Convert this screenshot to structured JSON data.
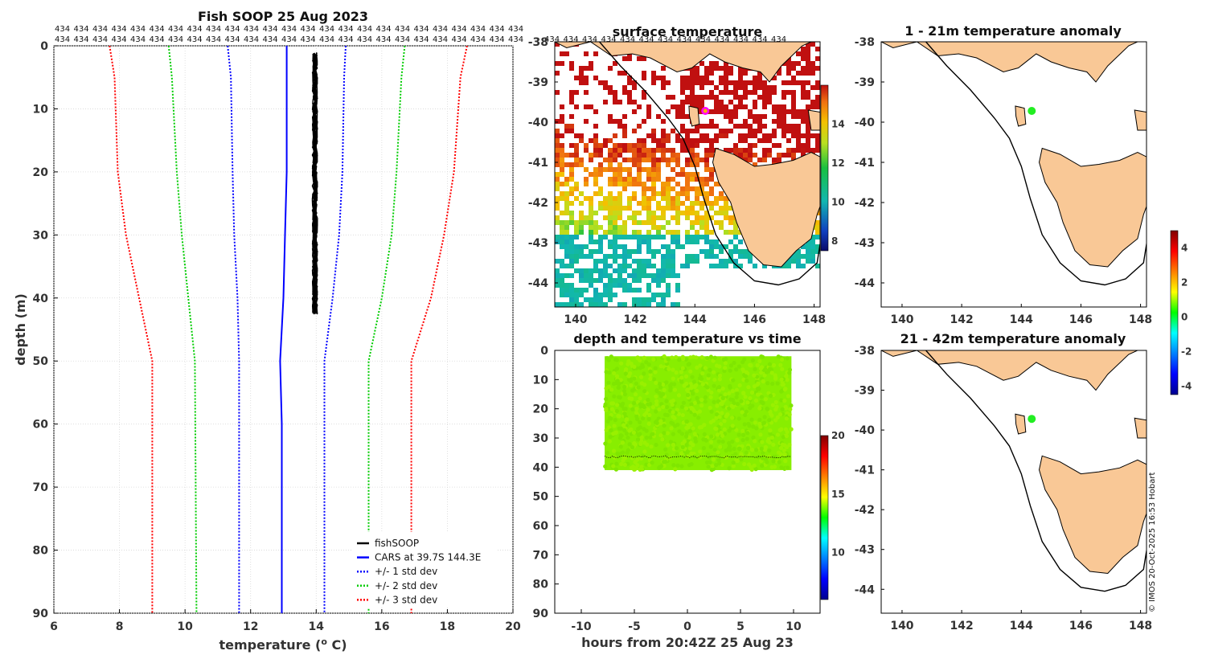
{
  "chart_data": [
    {
      "id": "profile",
      "type": "line",
      "title": "Fish SOOP 25 Aug 2023",
      "xlabel": "temperature (o C)",
      "ylabel": "depth (m)",
      "xlim": [
        6,
        20
      ],
      "ylim": [
        90,
        0
      ],
      "xticks": [
        "6",
        "8",
        "10",
        "12",
        "14",
        "16",
        "18",
        "20"
      ],
      "yticks": [
        "0",
        "10",
        "20",
        "30",
        "40",
        "50",
        "60",
        "70",
        "80",
        "90"
      ],
      "grid": true,
      "top_label": "434",
      "top_label_repeat": 25,
      "legend_position": "bottom-right",
      "series": [
        {
          "name": "fishSOOP",
          "color": "#000000",
          "style": "solid",
          "points": [
            [
              14.0,
              1
            ],
            [
              13.95,
              5
            ],
            [
              13.95,
              10
            ],
            [
              13.95,
              20
            ],
            [
              13.95,
              30
            ],
            [
              13.95,
              36
            ],
            [
              13.97,
              40
            ],
            [
              13.97,
              42
            ]
          ]
        },
        {
          "name": "CARS at 39.7S 144.3E",
          "color": "#0000ff",
          "style": "solid",
          "points": [
            [
              13.1,
              0
            ],
            [
              13.1,
              5
            ],
            [
              13.1,
              20
            ],
            [
              13.05,
              30
            ],
            [
              13.0,
              40
            ],
            [
              12.9,
              50
            ],
            [
              12.95,
              60
            ],
            [
              12.95,
              70
            ],
            [
              12.95,
              80
            ],
            [
              12.95,
              90
            ]
          ]
        },
        {
          "name": "+/- 1 std dev",
          "color": "#0000ff",
          "style": "dotted",
          "points": [
            [
              11.3,
              0
            ],
            [
              11.4,
              5
            ],
            [
              11.45,
              20
            ],
            [
              11.5,
              30
            ],
            [
              11.6,
              40
            ],
            [
              11.65,
              50
            ],
            [
              11.65,
              90
            ]
          ],
          "mirror": [
            [
              14.9,
              0
            ],
            [
              14.85,
              5
            ],
            [
              14.8,
              20
            ],
            [
              14.7,
              30
            ],
            [
              14.5,
              40
            ],
            [
              14.25,
              50
            ],
            [
              14.25,
              90
            ]
          ]
        },
        {
          "name": "+/- 2 std dev",
          "color": "#00cc00",
          "style": "dotted",
          "points": [
            [
              9.5,
              0
            ],
            [
              9.6,
              5
            ],
            [
              9.75,
              20
            ],
            [
              9.9,
              30
            ],
            [
              10.1,
              40
            ],
            [
              10.3,
              50
            ],
            [
              10.35,
              90
            ]
          ],
          "mirror": [
            [
              16.7,
              0
            ],
            [
              16.6,
              5
            ],
            [
              16.45,
              20
            ],
            [
              16.3,
              30
            ],
            [
              16.0,
              40
            ],
            [
              15.6,
              50
            ],
            [
              15.6,
              90
            ]
          ]
        },
        {
          "name": "+/- 3 std dev",
          "color": "#ff0000",
          "style": "dotted",
          "points": [
            [
              7.7,
              0
            ],
            [
              7.85,
              5
            ],
            [
              7.95,
              20
            ],
            [
              8.2,
              30
            ],
            [
              8.6,
              40
            ],
            [
              9.0,
              50
            ],
            [
              9.0,
              90
            ]
          ],
          "mirror": [
            [
              18.6,
              0
            ],
            [
              18.4,
              5
            ],
            [
              18.2,
              20
            ],
            [
              17.9,
              30
            ],
            [
              17.5,
              40
            ],
            [
              16.9,
              50
            ],
            [
              16.9,
              90
            ]
          ]
        }
      ]
    },
    {
      "id": "surface_map",
      "type": "heatmap",
      "title": "surface temperature",
      "xlim": [
        139.3,
        148.2
      ],
      "ylim": [
        -44.6,
        -38
      ],
      "xticks": [
        "140",
        "142",
        "144",
        "146",
        "148"
      ],
      "yticks": [
        "-38",
        "-39",
        "-40",
        "-41",
        "-42",
        "-43",
        "-44"
      ],
      "colorbar": {
        "min": 7.5,
        "max": 16,
        "ticks": [
          "8",
          "10",
          "12",
          "14"
        ]
      },
      "top_label": "434",
      "top_label_repeat": 13,
      "marker": {
        "lon": 144.35,
        "lat": -39.72
      }
    },
    {
      "id": "depth_time",
      "type": "scatter",
      "title": "depth and temperature vs time",
      "xlabel": "hours from 20:42Z 25 Aug 23",
      "xlim": [
        -12.5,
        12.5
      ],
      "ylim": [
        90,
        0
      ],
      "xticks": [
        "-10",
        "-5",
        "0",
        "5",
        "10"
      ],
      "yticks": [
        "0",
        "10",
        "20",
        "30",
        "40",
        "50",
        "60",
        "70",
        "80",
        "90"
      ],
      "colorbar": {
        "min": 6,
        "max": 20,
        "ticks": [
          "10",
          "15",
          "20"
        ]
      },
      "time_range": [
        -7.8,
        9.8
      ],
      "depth_range": [
        2,
        41
      ],
      "bottom_track_depth": 36.5
    },
    {
      "id": "anomaly_top",
      "type": "heatmap",
      "title": "1 - 21m temperature anomaly",
      "xlim": [
        139.3,
        148.2
      ],
      "ylim": [
        -44.6,
        -38
      ],
      "xticks": [
        "140",
        "142",
        "144",
        "146",
        "148"
      ],
      "yticks": [
        "-38",
        "-39",
        "-40",
        "-41",
        "-42",
        "-43",
        "-44"
      ],
      "marker": {
        "lon": 144.35,
        "lat": -39.72,
        "anomaly": 0.1
      }
    },
    {
      "id": "anomaly_bottom",
      "type": "heatmap",
      "title": "21 - 42m temperature anomaly",
      "xlim": [
        139.3,
        148.2
      ],
      "ylim": [
        -44.6,
        -38
      ],
      "xticks": [
        "140",
        "142",
        "144",
        "146",
        "148"
      ],
      "yticks": [
        "-38",
        "-39",
        "-40",
        "-41",
        "-42",
        "-43",
        "-44"
      ],
      "marker": {
        "lon": 144.35,
        "lat": -39.72,
        "anomaly": 0.1
      }
    },
    {
      "id": "anomaly_colorbar",
      "type": "colorbar",
      "min": -4.5,
      "max": 5,
      "ticks": [
        "4",
        "2",
        "0",
        "-2",
        "-4"
      ]
    }
  ],
  "credit": "© IMOS 20-Oct-2025 16:53 Hobart",
  "colors": {
    "land": "#f9c896",
    "coast": "#000000"
  }
}
